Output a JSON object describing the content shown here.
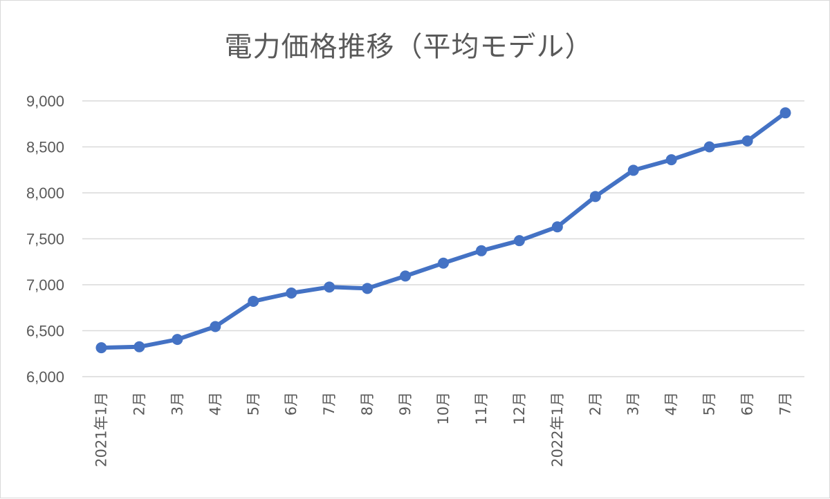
{
  "chart_data": {
    "type": "line",
    "title": "電力価格推移（平均モデル）",
    "xlabel": "",
    "ylabel": "",
    "ylim": [
      6000,
      9000
    ],
    "yticks": [
      "6,000",
      "6,500",
      "7,000",
      "7,500",
      "8,000",
      "8,500",
      "9,000"
    ],
    "ytick_values": [
      6000,
      6500,
      7000,
      7500,
      8000,
      8500,
      9000
    ],
    "grid": true,
    "legend": "none",
    "color": "#4472C4",
    "categories": [
      "2021年1月",
      "2月",
      "3月",
      "4月",
      "5月",
      "6月",
      "7月",
      "8月",
      "9月",
      "10月",
      "11月",
      "12月",
      "2022年1月",
      "2月",
      "3月",
      "4月",
      "5月",
      "6月",
      "7月"
    ],
    "series": [
      {
        "values": [
          6315,
          6325,
          6405,
          6545,
          6820,
          6910,
          6975,
          6960,
          7095,
          7235,
          7370,
          7480,
          7630,
          7960,
          8245,
          8360,
          8500,
          8565,
          8870
        ]
      }
    ]
  }
}
